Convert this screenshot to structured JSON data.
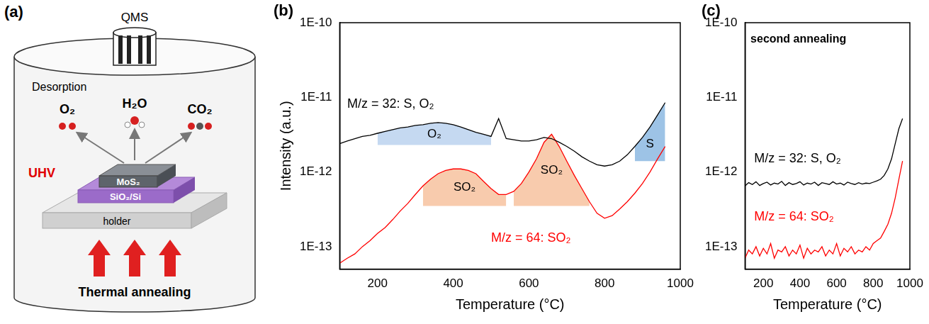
{
  "diagram": {
    "panel_label": "(a)",
    "detector": "QMS",
    "process": "Desorption",
    "molecules": [
      "O₂",
      "H₂O",
      "CO₂"
    ],
    "environment": "UHV",
    "layers": [
      "MoS₂",
      "SiO₂/Si"
    ],
    "holder": "holder",
    "heating": "Thermal annealing"
  },
  "chart_data": [
    {
      "type": "line",
      "panel_label": "(b)",
      "x_label": "Temperature (°C)",
      "y_label": "Intensity (a.u.)",
      "xlim": [
        100,
        1000
      ],
      "xticks": [
        200,
        400,
        600,
        800,
        1000
      ],
      "ylim": [
        5e-14,
        1e-10
      ],
      "yticks": [
        {
          "value": 1e-13,
          "label": "1E-13"
        },
        {
          "value": 1e-12,
          "label": "1E-12"
        },
        {
          "value": 1e-11,
          "label": "1E-11"
        },
        {
          "value": 1e-10,
          "label": "1E-10"
        }
      ],
      "log": "y",
      "grid": false,
      "x": [
        100,
        120,
        140,
        160,
        180,
        200,
        220,
        240,
        260,
        280,
        300,
        320,
        340,
        360,
        380,
        400,
        420,
        440,
        460,
        480,
        500,
        520,
        540,
        560,
        580,
        600,
        620,
        640,
        660,
        680,
        700,
        720,
        740,
        760,
        780,
        800,
        820,
        840,
        860,
        880,
        900,
        920,
        940,
        960
      ],
      "series": [
        {
          "name": "M/z = 32: S, O₂",
          "color": "#000000",
          "label_at": [
            120,
            8e-12
          ],
          "values": [
            2.4e-12,
            2.6e-12,
            2.8e-12,
            3e-12,
            3.1e-12,
            3.3e-12,
            3.5e-12,
            3.7e-12,
            3.9e-12,
            4e-12,
            4.2e-12,
            4.3e-12,
            4.5e-12,
            4.6e-12,
            4.5e-12,
            4.3e-12,
            4e-12,
            3.7e-12,
            3.4e-12,
            3.2e-12,
            3e-12,
            5.2e-12,
            2.8e-12,
            2.7e-12,
            2.6e-12,
            2.6e-12,
            2.7e-12,
            2.9e-12,
            2.8e-12,
            2.5e-12,
            2.2e-12,
            1.9e-12,
            1.6e-12,
            1.4e-12,
            1.25e-12,
            1.2e-12,
            1.25e-12,
            1.4e-12,
            1.7e-12,
            2.2e-12,
            2.9e-12,
            4e-12,
            5.8e-12,
            8.5e-12
          ]
        },
        {
          "name": "M/z = 64: SO₂",
          "color": "#ff0000",
          "label_at": [
            500,
            1.3e-13
          ],
          "values": [
            6e-14,
            7e-14,
            8e-14,
            1e-13,
            1.2e-13,
            1.5e-13,
            1.8e-13,
            2.3e-13,
            3e-13,
            3.8e-13,
            5e-13,
            6.5e-13,
            8e-13,
            9.5e-13,
            1.05e-12,
            1.1e-12,
            1.1e-12,
            1.05e-12,
            9.5e-13,
            7.5e-13,
            6e-13,
            5e-13,
            5e-13,
            5.5e-13,
            7e-13,
            1e-12,
            1.5e-12,
            2.5e-12,
            3.2e-12,
            2.2e-12,
            1.4e-12,
            9e-13,
            6e-13,
            4e-13,
            2.8e-13,
            2.4e-13,
            2.6e-13,
            3.2e-13,
            4e-13,
            5.2e-13,
            7e-13,
            1e-12,
            1.5e-12,
            2.2e-12
          ]
        }
      ],
      "regions": [
        {
          "label": "O₂",
          "series": 0,
          "x_range": [
            200,
            500
          ],
          "base": 2.3e-12,
          "color": "#c5d9f1"
        },
        {
          "label": "S",
          "series": 0,
          "x_range": [
            880,
            960
          ],
          "base": 1.4e-12,
          "color": "#9dc3e6"
        },
        {
          "label": "SO₂",
          "series": 1,
          "x_range": [
            320,
            540
          ],
          "base": 3.5e-13,
          "color": "#f8cbad"
        },
        {
          "label": "SO₂",
          "series": 1,
          "x_range": [
            560,
            760
          ],
          "base": 3.5e-13,
          "color": "#f8cbad"
        }
      ]
    },
    {
      "type": "line",
      "panel_label": "(c)",
      "x_label": "Temperature (°C)",
      "xlim": [
        100,
        1000
      ],
      "xticks": [
        200,
        400,
        600,
        800,
        1000
      ],
      "ylim": [
        5e-14,
        1e-10
      ],
      "yticks": [
        {
          "value": 1e-13,
          "label": "1E-13"
        },
        {
          "value": 1e-12,
          "label": "1E-12"
        },
        {
          "value": 1e-11,
          "label": "1E-11"
        },
        {
          "value": 1e-10,
          "label": "1E-10"
        }
      ],
      "log": "y",
      "grid": false,
      "annotations": [
        {
          "text": "second annealing",
          "x": 130,
          "y": 6e-11
        }
      ],
      "x": [
        100,
        120,
        140,
        160,
        180,
        200,
        220,
        240,
        260,
        280,
        300,
        320,
        340,
        360,
        380,
        400,
        420,
        440,
        460,
        480,
        500,
        520,
        540,
        560,
        580,
        600,
        620,
        640,
        660,
        680,
        700,
        720,
        740,
        760,
        780,
        800,
        820,
        840,
        860,
        880,
        900,
        920,
        940,
        960
      ],
      "series": [
        {
          "name": "M/z = 32: S, O₂",
          "color": "#000000",
          "label_at": [
            150,
            1.5e-12
          ],
          "values": [
            6.5e-13,
            7.2e-13,
            6.8e-13,
            7.4e-13,
            6.6e-13,
            7e-13,
            7.3e-13,
            6.7e-13,
            7.1e-13,
            6.9e-13,
            7.5e-13,
            6.6e-13,
            7.2e-13,
            6.8e-13,
            7e-13,
            7.4e-13,
            6.7e-13,
            7.1e-13,
            6.9e-13,
            7.3e-13,
            6.6e-13,
            7.2e-13,
            7e-13,
            6.8e-13,
            7.4e-13,
            6.9e-13,
            7.1e-13,
            6.7e-13,
            7.3e-13,
            7e-13,
            6.8e-13,
            7.2e-13,
            6.9e-13,
            7.1e-13,
            7e-13,
            7.3e-13,
            7.6e-13,
            8e-13,
            9e-13,
            1.1e-12,
            1.5e-12,
            2.4e-12,
            3.8e-12,
            5.2e-12
          ]
        },
        {
          "name": "M/z = 64: SO₂",
          "color": "#ff0000",
          "label_at": [
            150,
            2.5e-13
          ],
          "values": [
            7e-14,
            9e-14,
            8e-14,
            1e-13,
            7.5e-14,
            9.5e-14,
            8e-14,
            1.1e-13,
            7e-14,
            9e-14,
            8.5e-14,
            1e-13,
            7.5e-14,
            9e-14,
            8e-14,
            1.05e-13,
            7e-14,
            9.5e-14,
            8e-14,
            9e-14,
            8.5e-14,
            1e-13,
            7.5e-14,
            9e-14,
            8e-14,
            1.1e-13,
            7.5e-14,
            9.5e-14,
            8.5e-14,
            1e-13,
            8e-14,
            9e-14,
            8.5e-14,
            1e-13,
            9e-14,
            1.1e-13,
            1.2e-13,
            1.3e-13,
            1.6e-13,
            2e-13,
            2.8e-13,
            4.5e-13,
            8e-13,
            1.4e-12
          ]
        }
      ]
    }
  ]
}
